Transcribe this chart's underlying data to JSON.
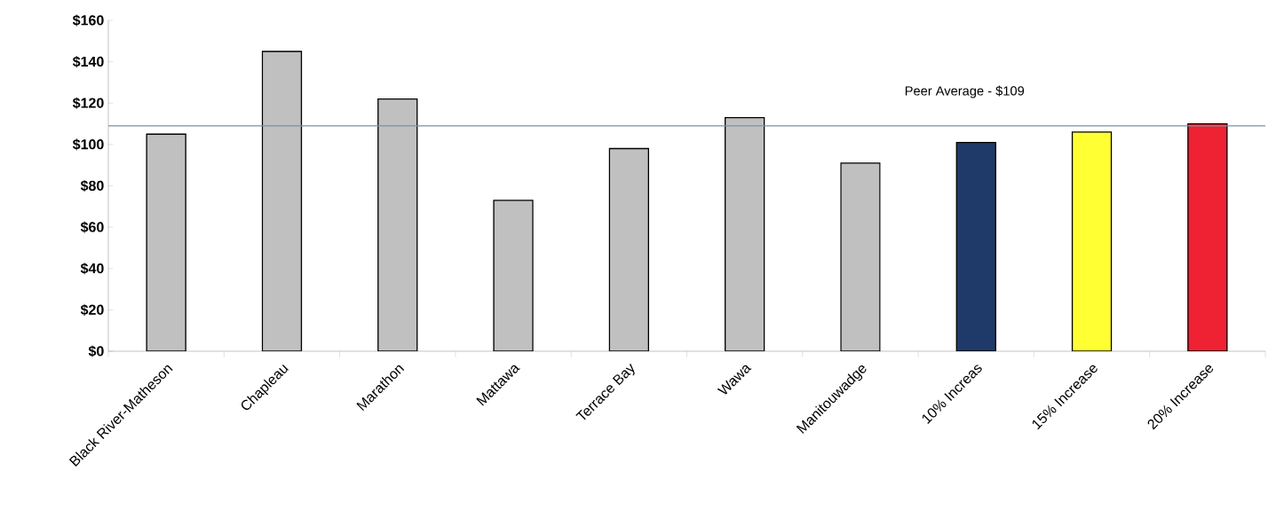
{
  "chart_data": {
    "type": "bar",
    "categories": [
      "Black River-Matheson",
      "Chapleau",
      "Marathon",
      "Mattawa",
      "Terrace Bay",
      "Wawa",
      "Manitouwadge",
      "10% Increas",
      "15% Increase",
      "20% Increase"
    ],
    "values": [
      105,
      145,
      122,
      73,
      98,
      113,
      91,
      101,
      106,
      110
    ],
    "colors": [
      "#c0c0c0",
      "#c0c0c0",
      "#c0c0c0",
      "#c0c0c0",
      "#c0c0c0",
      "#c0c0c0",
      "#c0c0c0",
      "#1f3a68",
      "#ffff33",
      "#ee2233"
    ],
    "ylim": [
      0,
      160
    ],
    "yticks": [
      {
        "value": 0,
        "label": "$0"
      },
      {
        "value": 20,
        "label": "$20"
      },
      {
        "value": 40,
        "label": "$40"
      },
      {
        "value": 60,
        "label": "$60"
      },
      {
        "value": 80,
        "label": "$80"
      },
      {
        "value": 100,
        "label": "$100"
      },
      {
        "value": 120,
        "label": "$120"
      },
      {
        "value": 140,
        "label": "$140"
      },
      {
        "value": 160,
        "label": "$160"
      }
    ],
    "ref_lines": [
      {
        "axis": "y",
        "value": 109,
        "label": "Peer Average - $109",
        "color": "#7f8fa0"
      }
    ],
    "grid": false
  }
}
